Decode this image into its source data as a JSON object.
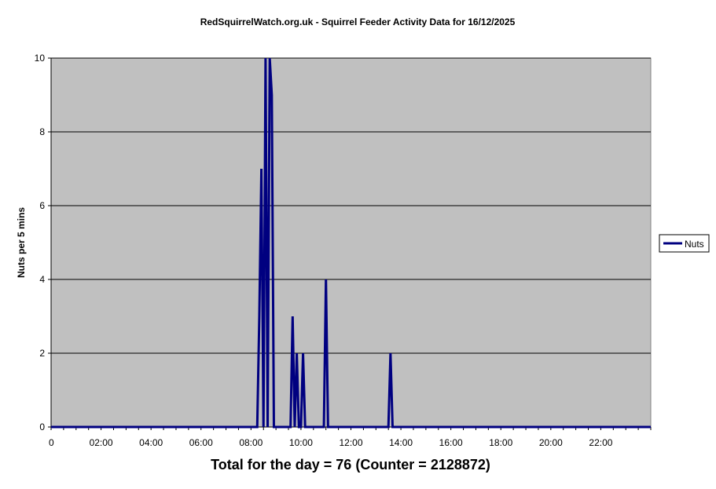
{
  "chart_data": {
    "type": "line",
    "title": "RedSquirrelWatch.org.uk - Squirrel Feeder Activity Data for 16/12/2025",
    "xlabel": "Total for the day = 76  (Counter = 2128872)",
    "ylabel": "Nuts per 5 mins",
    "ylim": [
      0,
      10
    ],
    "yticks": [
      "0",
      "2",
      "4",
      "6",
      "8",
      "10"
    ],
    "xlim": [
      "00:00",
      "24:00"
    ],
    "xticks": [
      "0",
      "02:00",
      "04:00",
      "06:00",
      "08:00",
      "10:00",
      "12:00",
      "14:00",
      "16:00",
      "18:00",
      "20:00",
      "22:00"
    ],
    "grid": "horizontal",
    "legend_position": "right",
    "colors": {
      "plot_background": "#c0c0c0",
      "series": "#000080",
      "gridline": "#000000"
    },
    "series": [
      {
        "name": "Nuts",
        "points": [
          [
            "00:00",
            0
          ],
          [
            "08:15",
            0
          ],
          [
            "08:20",
            3
          ],
          [
            "08:25",
            7
          ],
          [
            "08:30",
            0
          ],
          [
            "08:35",
            10
          ],
          [
            "08:40",
            0
          ],
          [
            "08:45",
            10
          ],
          [
            "08:50",
            9
          ],
          [
            "08:55",
            0
          ],
          [
            "09:35",
            0
          ],
          [
            "09:40",
            3
          ],
          [
            "09:45",
            0
          ],
          [
            "09:50",
            2
          ],
          [
            "09:55",
            0
          ],
          [
            "10:00",
            0
          ],
          [
            "10:05",
            2
          ],
          [
            "10:10",
            0
          ],
          [
            "10:55",
            0
          ],
          [
            "11:00",
            4
          ],
          [
            "11:05",
            0
          ],
          [
            "13:30",
            0
          ],
          [
            "13:35",
            2
          ],
          [
            "13:40",
            0
          ],
          [
            "24:00",
            0
          ]
        ]
      }
    ]
  }
}
